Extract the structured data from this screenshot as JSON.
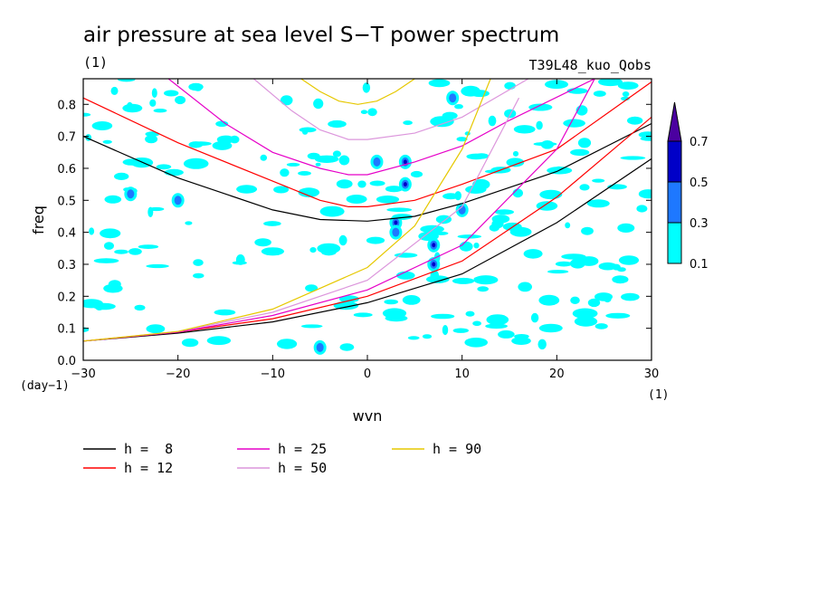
{
  "chart_data": {
    "type": "line",
    "title": "air pressure at sea level S−T power spectrum",
    "subtitle_left": "(1)",
    "subtitle_right": "T39L48_kuo_Qobs",
    "xlabel": "wvn",
    "ylabel": "freq",
    "x_unit": "(1)",
    "y_unit": "(day−1)",
    "xlim": [
      -30,
      30
    ],
    "ylim": [
      0,
      0.88
    ],
    "x_ticks": [
      -30,
      -20,
      -10,
      0,
      10,
      20,
      30
    ],
    "x_tick_labels": [
      "−30",
      "−20",
      "−10",
      "0",
      "10",
      "20",
      "30"
    ],
    "y_ticks": [
      0,
      0.1,
      0.2,
      0.3,
      0.4,
      0.5,
      0.6,
      0.7,
      0.8
    ],
    "y_tick_labels": [
      "0.0",
      "0.1",
      "0.2",
      "0.3",
      "0.4",
      "0.5",
      "0.6",
      "0.7",
      "0.8"
    ],
    "colorbar": {
      "levels": [
        "0.1",
        "0.3",
        "0.5",
        "0.7"
      ],
      "colors": [
        "#00ffff",
        "#1e78ff",
        "#0000c8",
        "#4b00a0"
      ]
    },
    "series": [
      {
        "name": "h =  8",
        "color": "#000000",
        "branches": [
          {
            "x": [
              -30,
              -20,
              -10,
              -5,
              0,
              5,
              10,
              20,
              30
            ],
            "y": [
              0.7,
              0.57,
              0.47,
              0.44,
              0.435,
              0.45,
              0.49,
              0.59,
              0.74
            ]
          },
          {
            "x": [
              -30,
              -20,
              -10,
              0,
              10,
              20,
              30
            ],
            "y": [
              0.06,
              0.085,
              0.12,
              0.18,
              0.27,
              0.43,
              0.63
            ]
          }
        ]
      },
      {
        "name": "h = 12",
        "color": "#ff0000",
        "branches": [
          {
            "x": [
              -30,
              -20,
              -10,
              -5,
              -2,
              0,
              5,
              10,
              20,
              30
            ],
            "y": [
              0.82,
              0.68,
              0.56,
              0.5,
              0.48,
              0.48,
              0.5,
              0.55,
              0.66,
              0.87
            ]
          },
          {
            "x": [
              -30,
              -20,
              -10,
              0,
              10,
              20,
              30
            ],
            "y": [
              0.06,
              0.088,
              0.13,
              0.2,
              0.31,
              0.51,
              0.76
            ]
          }
        ]
      },
      {
        "name": "h = 25",
        "color": "#e600c8",
        "branches": [
          {
            "x": [
              -21,
              -15,
              -10,
              -5,
              -2,
              0,
              5,
              10,
              15,
              24
            ],
            "y": [
              0.88,
              0.74,
              0.65,
              0.6,
              0.58,
              0.58,
              0.62,
              0.67,
              0.75,
              0.88
            ]
          },
          {
            "x": [
              -30,
              -20,
              -10,
              0,
              10,
              20,
              24
            ],
            "y": [
              0.06,
              0.088,
              0.14,
              0.22,
              0.36,
              0.66,
              0.88
            ]
          }
        ]
      },
      {
        "name": "h = 50",
        "color": "#dc96dc",
        "branches": [
          {
            "x": [
              -12,
              -8,
              -5,
              -2,
              0,
              5,
              10,
              17
            ],
            "y": [
              0.88,
              0.78,
              0.72,
              0.69,
              0.69,
              0.71,
              0.76,
              0.88
            ]
          },
          {
            "x": [
              -30,
              -20,
              -10,
              0,
              10,
              16
            ],
            "y": [
              0.06,
              0.09,
              0.15,
              0.25,
              0.48,
              0.82
            ]
          }
        ]
      },
      {
        "name": "h = 90",
        "color": "#e6c800",
        "branches": [
          {
            "x": [
              -7,
              -5,
              -3,
              -1,
              1,
              3,
              5
            ],
            "y": [
              0.88,
              0.84,
              0.81,
              0.8,
              0.81,
              0.84,
              0.88
            ]
          },
          {
            "x": [
              -30,
              -20,
              -10,
              0,
              5,
              10,
              13
            ],
            "y": [
              0.06,
              0.09,
              0.16,
              0.29,
              0.42,
              0.66,
              0.88
            ]
          }
        ]
      }
    ]
  }
}
